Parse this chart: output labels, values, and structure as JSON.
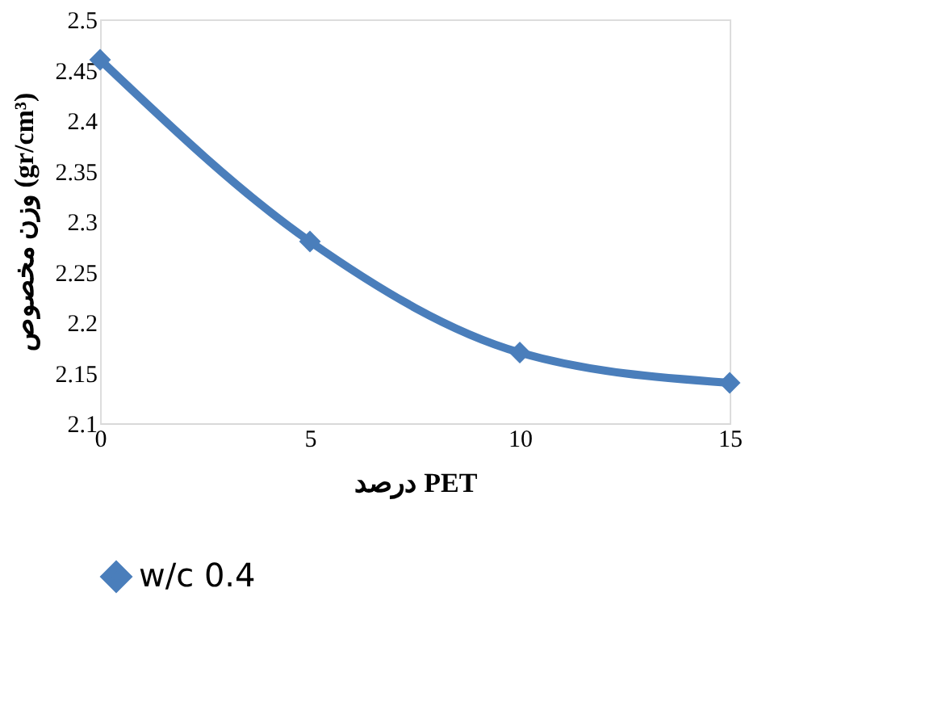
{
  "chart_data": {
    "type": "line",
    "xlabel": "درصد PET",
    "ylabel": "وزن مخصوص (gr/cm³)",
    "x": [
      0,
      5,
      10,
      15
    ],
    "series": [
      {
        "name": "w/c 0.4",
        "color": "#4a7ebb",
        "values": [
          2.46,
          2.28,
          2.17,
          2.14
        ]
      }
    ],
    "xlim": [
      0,
      15
    ],
    "xticks": [
      0,
      5,
      10,
      15
    ],
    "ylim": [
      2.1,
      2.5
    ],
    "yticks": [
      2.1,
      2.15,
      2.2,
      2.25,
      2.3,
      2.35,
      2.4,
      2.45,
      2.5
    ],
    "grid": false,
    "legend": "bottom",
    "marker": "diamond",
    "line_style": "solid"
  }
}
